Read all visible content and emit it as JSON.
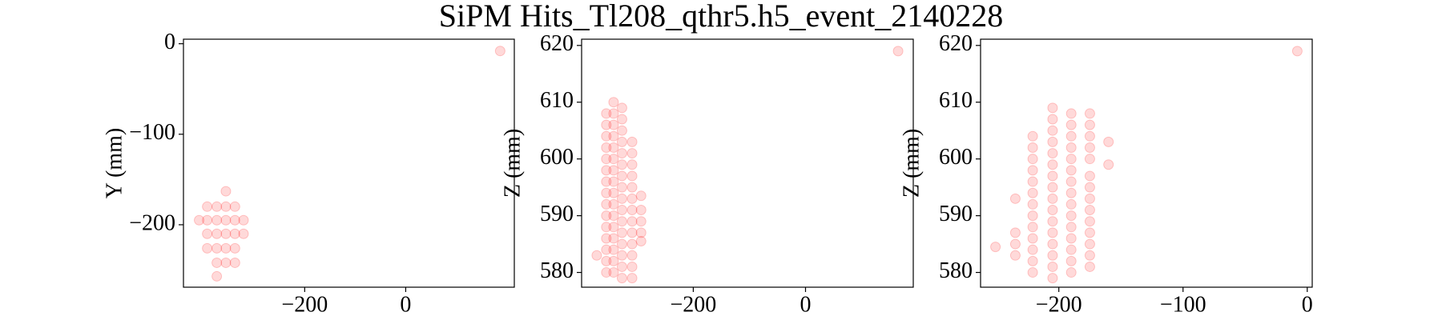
{
  "title": "SiPM Hits_Tl208_qthr5.h5_event_2140228",
  "chart_data": [
    {
      "type": "scatter",
      "ylabel": "Y (mm)",
      "color": "#ff0000",
      "xlim": [
        -440,
        215
      ],
      "ylim": [
        -269,
        5
      ],
      "xticks": [
        {
          "value": -200,
          "label": "−200"
        },
        0
      ],
      "yticks": [
        0,
        {
          "value": -100,
          "label": "−100"
        },
        {
          "value": -200,
          "label": "−200"
        }
      ],
      "x": [
        -356,
        -393,
        -374,
        -356,
        -338,
        -409,
        -393,
        -374,
        -356,
        -338,
        -321,
        -393,
        -374,
        -356,
        -338,
        -321,
        -393,
        -374,
        -356,
        -338,
        -374,
        -356,
        -338,
        -374,
        187
      ],
      "y": [
        -163,
        -180,
        -180,
        -180,
        -180,
        -195,
        -195,
        -195,
        -195,
        -195,
        -195,
        -210,
        -210,
        -210,
        -210,
        -210,
        -226,
        -226,
        -226,
        -226,
        -242,
        -242,
        -242,
        -257,
        -8
      ]
    },
    {
      "type": "scatter",
      "ylabel": "Z (mm)",
      "color": "#ff0000",
      "xlim": [
        -399,
        192
      ],
      "ylim": [
        577.4,
        621.1
      ],
      "xticks": [
        {
          "value": -200,
          "label": "−200"
        },
        0
      ],
      "yticks": [
        580,
        590,
        600,
        610,
        620
      ],
      "x": [
        -372,
        -355,
        -355,
        -355,
        -355,
        -355,
        -355,
        -355,
        -355,
        -355,
        -355,
        -355,
        -355,
        -355,
        -355,
        -355,
        -342,
        -342,
        -342,
        -342,
        -342,
        -342,
        -342,
        -342,
        -342,
        -342,
        -342,
        -342,
        -342,
        -342,
        -342,
        -342,
        -327,
        -327,
        -327,
        -327,
        -327,
        -327,
        -327,
        -327,
        -327,
        -327,
        -327,
        -327,
        -327,
        -327,
        -327,
        -327,
        -309,
        -309,
        -309,
        -309,
        -309,
        -309,
        -309,
        -309,
        -309,
        -309,
        -309,
        -309,
        -309,
        -293,
        -293,
        -293,
        -293,
        -293,
        165
      ],
      "y": [
        583,
        580,
        582,
        584,
        586,
        588,
        590,
        592,
        594,
        596,
        598,
        600,
        602,
        604,
        606,
        608,
        580,
        582,
        584,
        586,
        588,
        590,
        592,
        594,
        596,
        598,
        600,
        602,
        604,
        606,
        608,
        610,
        579,
        581,
        583,
        585,
        587,
        589,
        591,
        593,
        595,
        597,
        599,
        601,
        603,
        605,
        607,
        609,
        579,
        581,
        583,
        585,
        587,
        589,
        591,
        593,
        595,
        597,
        599,
        601,
        603,
        585.5,
        587,
        589,
        591,
        593.5,
        619
      ]
    },
    {
      "type": "scatter",
      "ylabel": "Z (mm)",
      "color": "#ff0000",
      "xlim": [
        -263,
        4
      ],
      "ylim": [
        577.4,
        621.1
      ],
      "xticks": [
        {
          "value": -200,
          "label": "−200"
        },
        {
          "value": -100,
          "label": "−100"
        },
        0
      ],
      "yticks": [
        580,
        590,
        600,
        610,
        620
      ],
      "x": [
        -251,
        -235,
        -235,
        -235,
        -235,
        -221,
        -221,
        -221,
        -221,
        -221,
        -221,
        -221,
        -221,
        -221,
        -221,
        -221,
        -221,
        -221,
        -205,
        -205,
        -205,
        -205,
        -205,
        -205,
        -205,
        -205,
        -205,
        -205,
        -205,
        -205,
        -205,
        -205,
        -205,
        -205,
        -190,
        -190,
        -190,
        -190,
        -190,
        -190,
        -190,
        -190,
        -190,
        -190,
        -190,
        -190,
        -190,
        -190,
        -190,
        -175,
        -175,
        -175,
        -175,
        -175,
        -175,
        -175,
        -175,
        -175,
        -175,
        -175,
        -175,
        -175,
        -175,
        -160,
        -160,
        -8
      ],
      "y": [
        584.5,
        583,
        585,
        587,
        593,
        580,
        582,
        584,
        586,
        588,
        590,
        592,
        594,
        596,
        598,
        600,
        602,
        604,
        579,
        581,
        583,
        585,
        587,
        589,
        591,
        593,
        595,
        597,
        599,
        601,
        603,
        605,
        607,
        609,
        580,
        582,
        584,
        586,
        588,
        590,
        592,
        594,
        596,
        598,
        600,
        602,
        604,
        606,
        608,
        581,
        583,
        585,
        587,
        589,
        591,
        593,
        595,
        597,
        600,
        602,
        604,
        606,
        608,
        599,
        603,
        619
      ]
    }
  ]
}
